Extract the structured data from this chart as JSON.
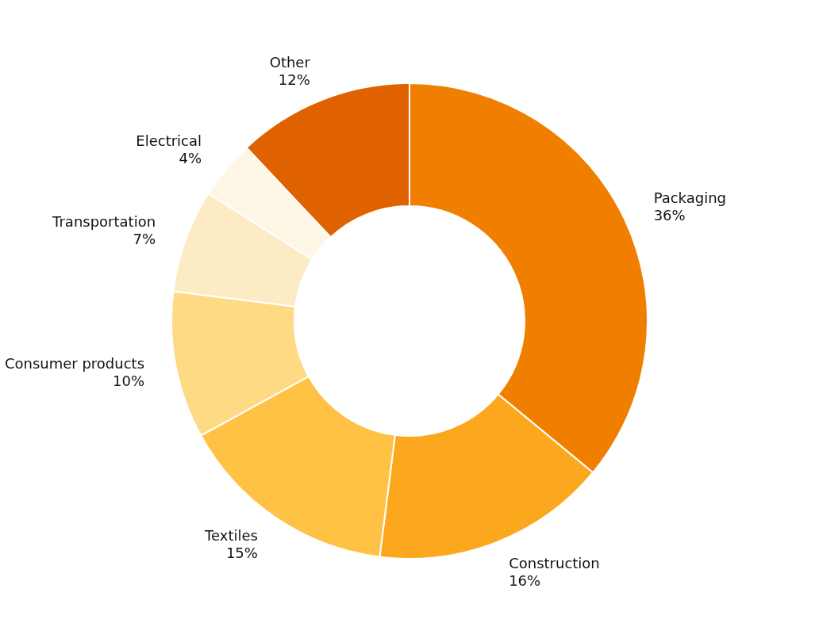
{
  "chart_data": {
    "type": "donut",
    "categories": [
      "Packaging",
      "Construction",
      "Textiles",
      "Consumer products",
      "Transportation",
      "Electrical",
      "Other"
    ],
    "values": [
      36,
      16,
      15,
      10,
      7,
      4,
      12
    ],
    "colors": [
      "#f07f00",
      "#fca81f",
      "#ffc244",
      "#ffda85",
      "#fdebc6",
      "#fff7e6",
      "#e06100"
    ],
    "value_labels": [
      "36%",
      "16%",
      "15%",
      "10%",
      "7%",
      "4%",
      "12%"
    ],
    "legend": false
  }
}
